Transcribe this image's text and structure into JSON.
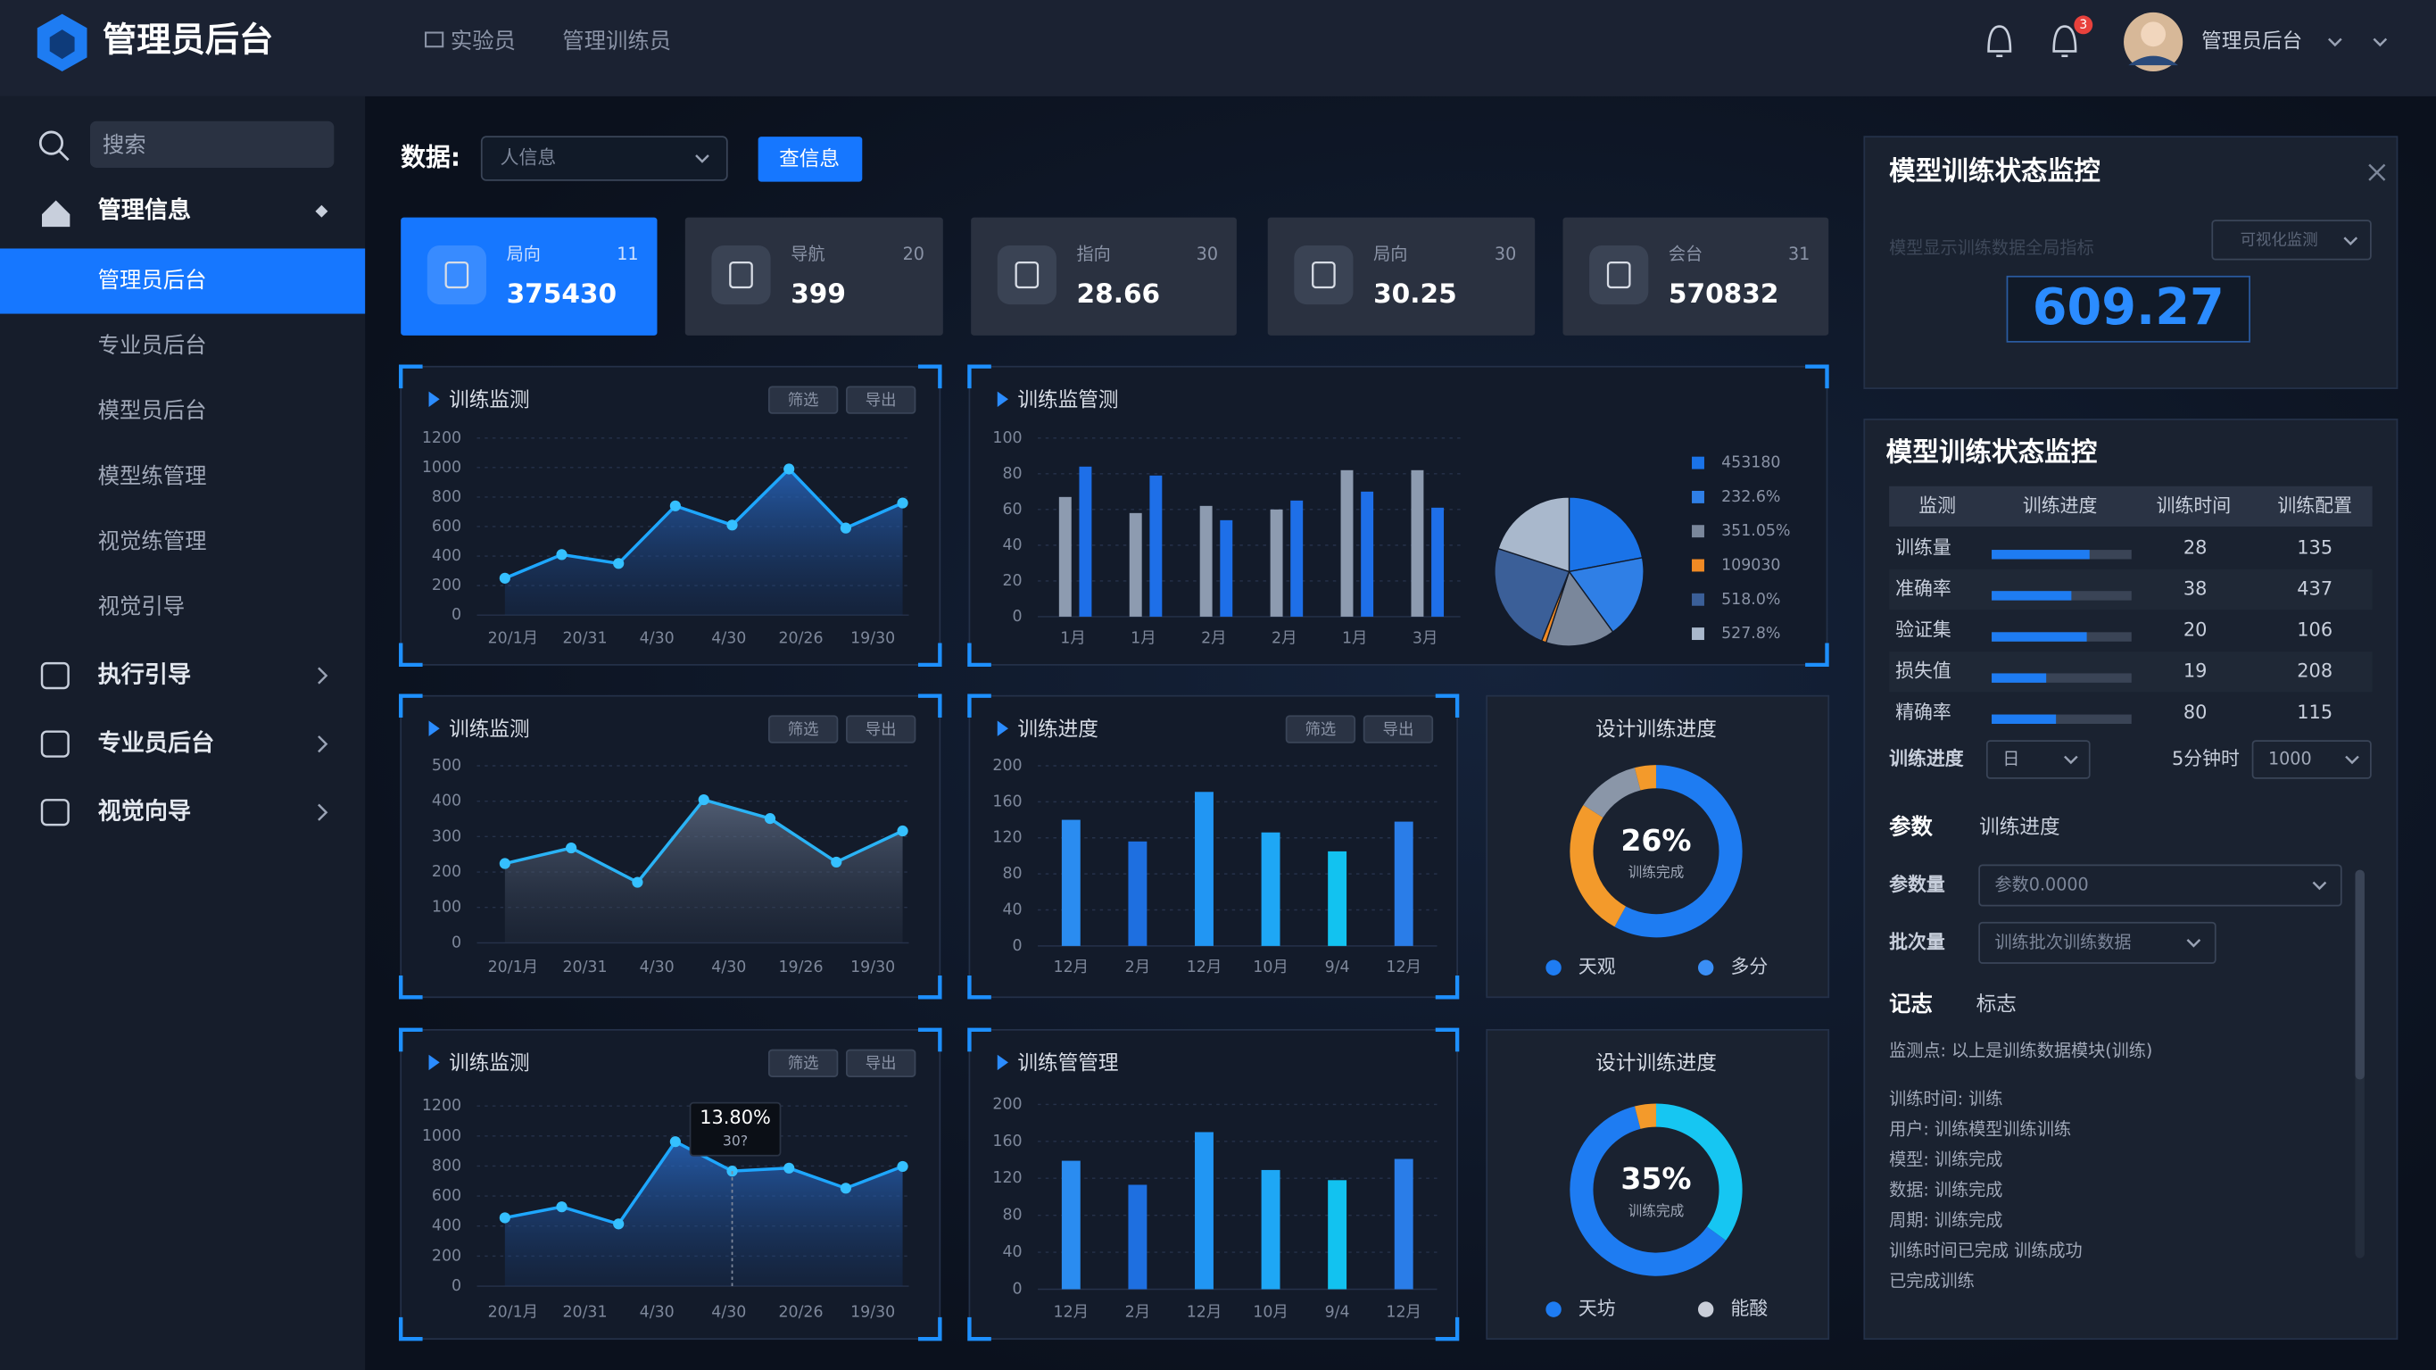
{
  "header": {
    "title": "管理员后台",
    "nav": [
      "实验员",
      "管理训练员"
    ],
    "badge": "3",
    "user": "管理员后台"
  },
  "sidebar": {
    "search": "搜索",
    "menu": [
      {
        "label": "管理信息",
        "children": [
          "管理员后台",
          "专业员后台",
          "模型员后台",
          "模型练管理",
          "视觉练管理",
          "视觉引导"
        ]
      },
      {
        "label": "执行引导"
      },
      {
        "label": "专业员后台"
      },
      {
        "label": "视觉向导"
      }
    ]
  },
  "toolbar": {
    "label": "数据:",
    "select": "人信息",
    "button": "查信息"
  },
  "stats": [
    {
      "label": "局向",
      "count": "11",
      "value": "375430"
    },
    {
      "label": "导航",
      "count": "20",
      "value": "399"
    },
    {
      "label": "指向",
      "count": "30",
      "value": "28.66"
    },
    {
      "label": "局向",
      "count": "30",
      "value": "30.25"
    },
    {
      "label": "会台",
      "count": "31",
      "value": "570832"
    }
  ],
  "line_panels": [
    {
      "title": "训练监测",
      "buttons": [
        "筛选",
        "导出"
      ],
      "ylim": [
        0,
        1200
      ],
      "yticks": [
        0,
        200,
        400,
        600,
        800,
        1000,
        1200
      ],
      "xlabels": [
        "20/1月",
        "20/31",
        "4/30",
        "4/30",
        "20/26",
        "19/30"
      ],
      "values": [
        250,
        410,
        350,
        740,
        610,
        990,
        590,
        760
      ]
    },
    {
      "title": "训练监测",
      "buttons": [
        "筛选",
        "导出"
      ],
      "ylim": [
        0,
        500
      ],
      "yticks": [
        0,
        100,
        200,
        300,
        400,
        500
      ],
      "xlabels": [
        "20/1月",
        "20/31",
        "4/30",
        "4/30",
        "19/26",
        "19/30"
      ],
      "values": [
        224,
        268,
        171,
        404,
        351,
        228,
        316
      ]
    },
    {
      "title": "训练监测",
      "buttons": [
        "筛选",
        "导出"
      ],
      "ylim": [
        0,
        1200
      ],
      "yticks": [
        0,
        200,
        400,
        600,
        800,
        1000,
        1200
      ],
      "xlabels": [
        "20/1月",
        "20/31",
        "4/30",
        "4/30",
        "20/26",
        "19/30"
      ],
      "values": [
        455,
        528,
        414,
        962,
        766,
        786,
        652,
        797
      ],
      "tooltip": {
        "title": "13.80%",
        "sub": "30?"
      }
    }
  ],
  "combo_panel": {
    "title": "训练监管测",
    "ylim": [
      0,
      100
    ],
    "yticks": [
      0,
      20,
      40,
      60,
      80,
      100
    ],
    "xlabels": [
      "1月",
      "1月",
      "2月",
      "2月",
      "1月",
      "3月"
    ],
    "series": [
      {
        "color": "#8d9bb0",
        "values": [
          67,
          58,
          62,
          60,
          82,
          82
        ]
      },
      {
        "color": "#1e6fe8",
        "values": [
          84,
          79,
          54,
          65,
          70,
          61
        ]
      }
    ],
    "pie": [
      {
        "label": "453180",
        "color": "#1a73e8",
        "value": 22
      },
      {
        "label": "232.6%",
        "color": "#2f7fe6",
        "value": 18
      },
      {
        "label": "351.05%",
        "color": "#7a879b",
        "value": 15
      },
      {
        "label": "109030",
        "color": "#f08a24",
        "value": 1
      },
      {
        "label": "518.0%",
        "color": "#3b5f98",
        "value": 24
      },
      {
        "label": "527.8%",
        "color": "#a9b8cc",
        "value": 20
      }
    ]
  },
  "bar_panels": [
    {
      "title": "训练进度",
      "buttons": [
        "筛选",
        "导出"
      ],
      "ylim": [
        0,
        200
      ],
      "yticks": [
        0,
        40,
        80,
        120,
        160,
        200
      ],
      "xlabels": [
        "12月",
        "2月",
        "12月",
        "10月",
        "9/4",
        "12月"
      ],
      "values": [
        140,
        116,
        171,
        126,
        105,
        138
      ]
    },
    {
      "title": "训练管管理",
      "ylim": [
        0,
        200
      ],
      "yticks": [
        0,
        40,
        80,
        120,
        160,
        200
      ],
      "xlabels": [
        "12月",
        "2月",
        "12月",
        "10月",
        "9/4",
        "12月"
      ],
      "values": [
        139,
        113,
        170,
        129,
        118,
        141
      ]
    }
  ],
  "donut_panels": [
    {
      "title": "设计训练进度",
      "center": "26%",
      "center_sub": "训练完成",
      "segments": [
        {
          "color": "#1e7cf2",
          "value": 58
        },
        {
          "color": "#f39a2b",
          "value": 26
        },
        {
          "color": "#8a96a8",
          "value": 12
        },
        {
          "color": "#f39a2b",
          "value": 4
        }
      ],
      "legend": [
        {
          "label": "天观",
          "color": "#1e7cf2"
        },
        {
          "label": "多分",
          "color": "#3a8ef5"
        }
      ]
    },
    {
      "title": "设计训练进度",
      "center": "35%",
      "center_sub": "训练完成",
      "segments": [
        {
          "color": "#16c6f2",
          "value": 35
        },
        {
          "color": "#1e7cf2",
          "value": 61
        },
        {
          "color": "#f39a2b",
          "value": 4
        }
      ],
      "legend": [
        {
          "label": "天坊",
          "color": "#1e7cf2"
        },
        {
          "label": "能酸",
          "color": "#c9ced8"
        }
      ]
    }
  ],
  "monitor": {
    "title": "模型训练状态监控",
    "subtitle": "模型显示训练数据全局指标",
    "select": "可视化监测",
    "value": "609.27"
  },
  "status": {
    "title": "模型训练状态监控",
    "columns": [
      "监测",
      "训练进度",
      "训练时间",
      "训练配置"
    ],
    "rows": [
      {
        "name": "训练量",
        "progress": 70,
        "time": "28",
        "config": "135"
      },
      {
        "name": "准确率",
        "progress": 57,
        "time": "38",
        "config": "437"
      },
      {
        "name": "验证集",
        "progress": 68,
        "time": "20",
        "config": "106"
      },
      {
        "name": "损失值",
        "progress": 39,
        "time": "19",
        "config": "208"
      },
      {
        "name": "精确率",
        "progress": 46,
        "time": "80",
        "config": "115"
      }
    ],
    "filters": [
      {
        "label": "训练进度",
        "select": "日"
      },
      {
        "label": "5分钟时",
        "select": "1000"
      }
    ],
    "params_label": "参数",
    "params_value": "训练进度",
    "fields": [
      {
        "label": "参数量",
        "select": "参数0.0000"
      },
      {
        "label": "批次量",
        "select": "训练批次训练数据"
      }
    ],
    "log_label": "记志",
    "log_value": "标志",
    "log": [
      "监测点: 以上是训练数据模块(训练)",
      "训练时间: 训练",
      "用户: 训练模型训练训练",
      "模型: 训练完成",
      "数据: 训练完成",
      "周期: 训练完成",
      "训练时间已完成 训练成功",
      "已完成训练"
    ]
  }
}
